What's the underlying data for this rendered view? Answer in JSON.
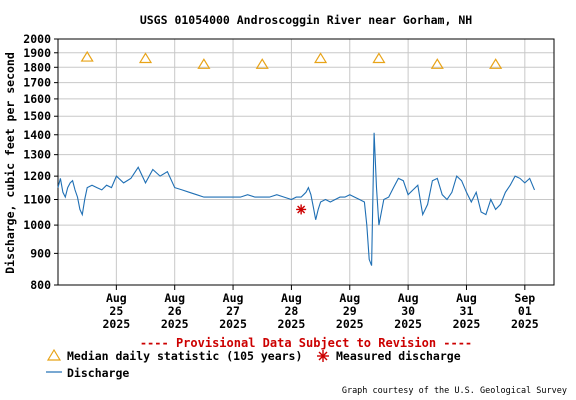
{
  "chart_data": {
    "type": "line",
    "title": "USGS 01054000 Androscoggin River near Gorham, NH",
    "ylabel": "Discharge, cubic feet per second",
    "y_scale": "log",
    "ylim": [
      800,
      2000
    ],
    "y_ticks": [
      800,
      900,
      1000,
      1100,
      1200,
      1300,
      1400,
      1500,
      1600,
      1700,
      1800,
      1900,
      2000
    ],
    "x_range": [
      "2025-08-24",
      "2025-09-01T12:00"
    ],
    "x_ticks": [
      {
        "date": "2025-08-25",
        "label": [
          "Aug",
          "25",
          "2025"
        ]
      },
      {
        "date": "2025-08-26",
        "label": [
          "Aug",
          "26",
          "2025"
        ]
      },
      {
        "date": "2025-08-27",
        "label": [
          "Aug",
          "27",
          "2025"
        ]
      },
      {
        "date": "2025-08-28",
        "label": [
          "Aug",
          "28",
          "2025"
        ]
      },
      {
        "date": "2025-08-29",
        "label": [
          "Aug",
          "29",
          "2025"
        ]
      },
      {
        "date": "2025-08-30",
        "label": [
          "Aug",
          "30",
          "2025"
        ]
      },
      {
        "date": "2025-08-31",
        "label": [
          "Aug",
          "31",
          "2025"
        ]
      },
      {
        "date": "2025-09-01",
        "label": [
          "Sep",
          "01",
          "2025"
        ]
      }
    ],
    "grid": true,
    "series": [
      {
        "name": "Discharge",
        "color": "#1f6fb4",
        "x": [
          "2025-08-24T00:00",
          "2025-08-24T01:00",
          "2025-08-24T02:00",
          "2025-08-24T03:00",
          "2025-08-24T04:00",
          "2025-08-24T05:00",
          "2025-08-24T06:00",
          "2025-08-24T07:00",
          "2025-08-24T08:00",
          "2025-08-24T09:00",
          "2025-08-24T10:00",
          "2025-08-24T11:00",
          "2025-08-24T12:00",
          "2025-08-24T14:00",
          "2025-08-24T16:00",
          "2025-08-24T18:00",
          "2025-08-24T20:00",
          "2025-08-24T22:00",
          "2025-08-25T00:00",
          "2025-08-25T03:00",
          "2025-08-25T06:00",
          "2025-08-25T09:00",
          "2025-08-25T12:00",
          "2025-08-25T15:00",
          "2025-08-25T18:00",
          "2025-08-25T21:00",
          "2025-08-26T00:00",
          "2025-08-26T03:00",
          "2025-08-26T06:00",
          "2025-08-26T09:00",
          "2025-08-26T12:00",
          "2025-08-26T15:00",
          "2025-08-26T18:00",
          "2025-08-26T21:00",
          "2025-08-27T00:00",
          "2025-08-27T03:00",
          "2025-08-27T06:00",
          "2025-08-27T09:00",
          "2025-08-27T12:00",
          "2025-08-27T15:00",
          "2025-08-27T18:00",
          "2025-08-27T21:00",
          "2025-08-28T00:00",
          "2025-08-28T02:00",
          "2025-08-28T04:00",
          "2025-08-28T05:00",
          "2025-08-28T06:00",
          "2025-08-28T07:00",
          "2025-08-28T08:00",
          "2025-08-28T09:00",
          "2025-08-28T10:00",
          "2025-08-28T11:00",
          "2025-08-28T12:00",
          "2025-08-28T14:00",
          "2025-08-28T16:00",
          "2025-08-28T18:00",
          "2025-08-28T20:00",
          "2025-08-28T22:00",
          "2025-08-29T00:00",
          "2025-08-29T02:00",
          "2025-08-29T04:00",
          "2025-08-29T06:00",
          "2025-08-29T07:00",
          "2025-08-29T08:00",
          "2025-08-29T09:00",
          "2025-08-29T10:00",
          "2025-08-29T11:00",
          "2025-08-29T12:00",
          "2025-08-29T14:00",
          "2025-08-29T16:00",
          "2025-08-29T18:00",
          "2025-08-29T20:00",
          "2025-08-29T22:00",
          "2025-08-30T00:00",
          "2025-08-30T02:00",
          "2025-08-30T04:00",
          "2025-08-30T06:00",
          "2025-08-30T08:00",
          "2025-08-30T10:00",
          "2025-08-30T12:00",
          "2025-08-30T14:00",
          "2025-08-30T16:00",
          "2025-08-30T18:00",
          "2025-08-30T20:00",
          "2025-08-30T22:00",
          "2025-08-31T00:00",
          "2025-08-31T02:00",
          "2025-08-31T04:00",
          "2025-08-31T06:00",
          "2025-08-31T08:00",
          "2025-08-31T10:00",
          "2025-08-31T12:00",
          "2025-08-31T14:00",
          "2025-08-31T16:00",
          "2025-08-31T18:00",
          "2025-08-31T20:00",
          "2025-08-31T22:00",
          "2025-09-01T00:00",
          "2025-09-01T02:00",
          "2025-09-01T04:00"
        ],
        "values": [
          1150,
          1190,
          1130,
          1110,
          1150,
          1170,
          1180,
          1140,
          1110,
          1060,
          1040,
          1100,
          1150,
          1160,
          1150,
          1140,
          1160,
          1150,
          1200,
          1170,
          1190,
          1240,
          1170,
          1230,
          1200,
          1220,
          1150,
          1140,
          1130,
          1120,
          1110,
          1110,
          1110,
          1110,
          1110,
          1110,
          1120,
          1110,
          1110,
          1110,
          1120,
          1110,
          1100,
          1110,
          1110,
          1120,
          1130,
          1150,
          1120,
          1070,
          1020,
          1060,
          1090,
          1100,
          1090,
          1100,
          1110,
          1110,
          1120,
          1110,
          1100,
          1090,
          1000,
          880,
          860,
          1410,
          1150,
          1000,
          1100,
          1110,
          1150,
          1190,
          1180,
          1120,
          1140,
          1160,
          1040,
          1080,
          1180,
          1190,
          1120,
          1100,
          1130,
          1200,
          1180,
          1130,
          1090,
          1130,
          1050,
          1040,
          1100,
          1060,
          1080,
          1130,
          1160,
          1200,
          1190,
          1170,
          1190,
          1140
        ]
      }
    ],
    "medians": {
      "name": "Median daily statistic (105 years)",
      "color": "#e8a317",
      "x": [
        "2025-08-24T12:00",
        "2025-08-25T12:00",
        "2025-08-26T12:00",
        "2025-08-27T12:00",
        "2025-08-28T12:00",
        "2025-08-29T12:00",
        "2025-08-30T12:00",
        "2025-08-31T12:00"
      ],
      "values": [
        1870,
        1860,
        1820,
        1820,
        1860,
        1860,
        1820,
        1820
      ]
    },
    "measured": {
      "name": "Measured discharge",
      "color": "#cc0000",
      "x": [
        "2025-08-28T04:00"
      ],
      "values": [
        1060
      ]
    },
    "provisional_note": "---- Provisional Data Subject to Revision ----",
    "credit": "Graph courtesy of the U.S. Geological Survey"
  }
}
